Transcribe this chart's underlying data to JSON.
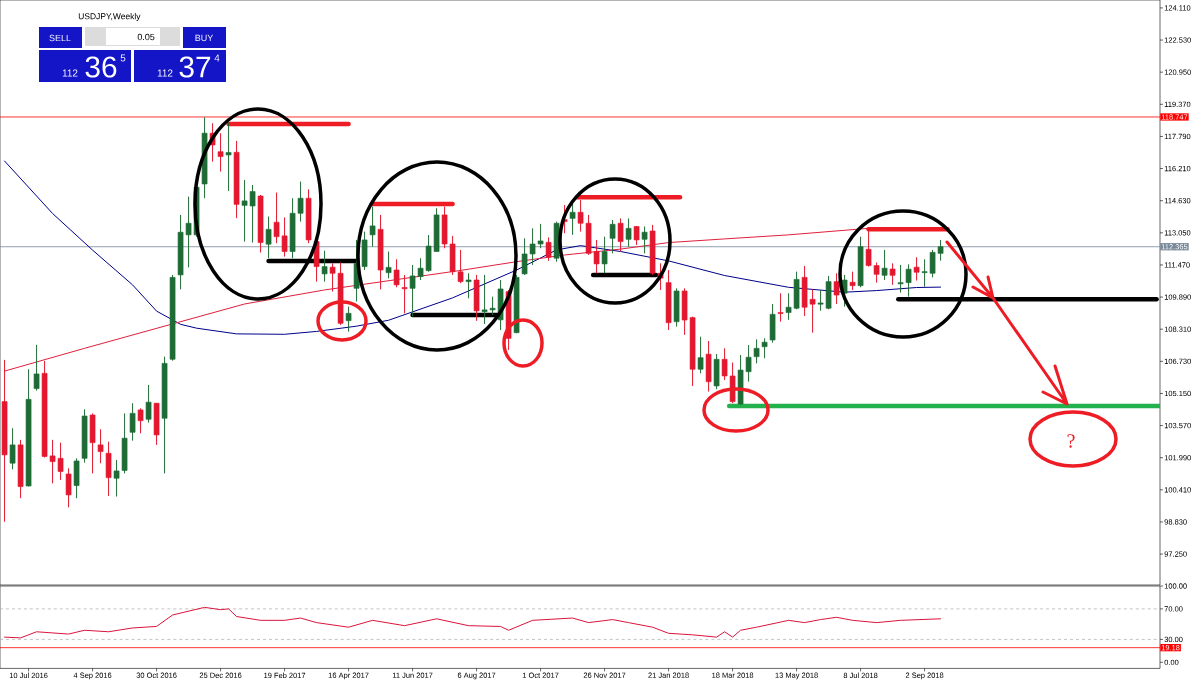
{
  "chart_data": [
    {
      "type": "candlestick",
      "title": "USDJPY,Weekly",
      "x": [
        "2016-06-19",
        "2016-06-26",
        "2016-07-03",
        "2016-07-10",
        "2016-07-17",
        "2016-07-24",
        "2016-07-31",
        "2016-08-07",
        "2016-08-14",
        "2016-08-21",
        "2016-08-28",
        "2016-09-04",
        "2016-09-11",
        "2016-09-18",
        "2016-09-25",
        "2016-10-02",
        "2016-10-09",
        "2016-10-16",
        "2016-10-23",
        "2016-10-30",
        "2016-11-06",
        "2016-11-13",
        "2016-11-20",
        "2016-11-27",
        "2016-12-04",
        "2016-12-11",
        "2016-12-18",
        "2016-12-25",
        "2017-01-01",
        "2017-01-08",
        "2017-01-15",
        "2017-01-22",
        "2017-01-29",
        "2017-02-05",
        "2017-02-12",
        "2017-02-19",
        "2017-02-26",
        "2017-03-05",
        "2017-03-12",
        "2017-03-19",
        "2017-03-26",
        "2017-04-02",
        "2017-04-09",
        "2017-04-16",
        "2017-04-23",
        "2017-04-30",
        "2017-05-07",
        "2017-05-14",
        "2017-05-21",
        "2017-05-28",
        "2017-06-04",
        "2017-06-11",
        "2017-06-18",
        "2017-06-25",
        "2017-07-02",
        "2017-07-09",
        "2017-07-16",
        "2017-07-23",
        "2017-07-30",
        "2017-08-06",
        "2017-08-13",
        "2017-08-20",
        "2017-08-27",
        "2017-09-03",
        "2017-09-10",
        "2017-09-17",
        "2017-09-24",
        "2017-10-01",
        "2017-10-08",
        "2017-10-15",
        "2017-10-22",
        "2017-10-29",
        "2017-11-05",
        "2017-11-12",
        "2017-11-19",
        "2017-11-26",
        "2017-12-03",
        "2017-12-10",
        "2017-12-17",
        "2017-12-24",
        "2017-12-31",
        "2018-01-07",
        "2018-01-14",
        "2018-01-21",
        "2018-01-28",
        "2018-02-04",
        "2018-02-11",
        "2018-02-18",
        "2018-02-25",
        "2018-03-04",
        "2018-03-11",
        "2018-03-18",
        "2018-03-25",
        "2018-04-01",
        "2018-04-08",
        "2018-04-15",
        "2018-04-22",
        "2018-04-29",
        "2018-05-06",
        "2018-05-13",
        "2018-05-20",
        "2018-05-27",
        "2018-06-03",
        "2018-06-10",
        "2018-06-17",
        "2018-06-24",
        "2018-07-01",
        "2018-07-08",
        "2018-07-15",
        "2018-07-22",
        "2018-07-29",
        "2018-08-05",
        "2018-08-12",
        "2018-08-19",
        "2018-08-26",
        "2018-09-02",
        "2018-09-09",
        "2018-09-16"
      ],
      "ohlc": [
        [
          104.75,
          106.8,
          98.84,
          102.13
        ],
        [
          101.72,
          103.44,
          101.42,
          102.62
        ],
        [
          102.62,
          102.87,
          100.0,
          100.57
        ],
        [
          100.6,
          106.34,
          100.57,
          104.86
        ],
        [
          105.39,
          107.54,
          105.29,
          106.11
        ],
        [
          106.14,
          106.75,
          102.0,
          102.05
        ],
        [
          102.08,
          102.87,
          100.73,
          101.8
        ],
        [
          101.96,
          102.73,
          100.9,
          101.31
        ],
        [
          101.19,
          101.47,
          99.55,
          100.16
        ],
        [
          100.62,
          101.96,
          100.0,
          101.83
        ],
        [
          101.96,
          104.37,
          101.75,
          104.04
        ],
        [
          104.09,
          104.17,
          101.22,
          102.73
        ],
        [
          102.62,
          103.39,
          101.72,
          102.29
        ],
        [
          102.21,
          102.78,
          100.11,
          101.01
        ],
        [
          100.98,
          101.88,
          100.08,
          101.34
        ],
        [
          101.36,
          104.17,
          101.22,
          102.95
        ],
        [
          103.24,
          104.67,
          102.83,
          104.17
        ],
        [
          104.34,
          104.42,
          103.19,
          103.81
        ],
        [
          103.88,
          105.57,
          103.72,
          104.72
        ],
        [
          104.67,
          104.67,
          102.62,
          103.11
        ],
        [
          103.93,
          106.96,
          101.22,
          106.63
        ],
        [
          106.83,
          110.98,
          106.76,
          110.86
        ],
        [
          110.98,
          113.93,
          110.27,
          113.08
        ],
        [
          112.95,
          114.83,
          111.35,
          113.52
        ],
        [
          112.95,
          115.36,
          112.86,
          115.29
        ],
        [
          115.45,
          118.73,
          114.75,
          117.95
        ],
        [
          117.95,
          118.44,
          116.55,
          117.37
        ],
        [
          117.04,
          117.95,
          116.06,
          116.8
        ],
        [
          116.88,
          118.47,
          115.11,
          117.0
        ],
        [
          117.01,
          117.57,
          113.77,
          114.45
        ],
        [
          114.4,
          115.65,
          112.62,
          114.62
        ],
        [
          114.37,
          115.4,
          112.57,
          115.08
        ],
        [
          114.86,
          114.91,
          112.08,
          112.57
        ],
        [
          112.49,
          113.85,
          111.8,
          113.22
        ],
        [
          113.57,
          115.03,
          112.54,
          112.86
        ],
        [
          112.9,
          113.81,
          111.88,
          112.13
        ],
        [
          112.13,
          114.75,
          111.8,
          114.01
        ],
        [
          114.01,
          115.57,
          113.6,
          114.75
        ],
        [
          114.75,
          115.19,
          112.54,
          112.7
        ],
        [
          112.62,
          112.7,
          110.65,
          111.39
        ],
        [
          111.03,
          112.17,
          110.65,
          111.39
        ],
        [
          111.36,
          111.55,
          110.16,
          111.06
        ],
        [
          111.06,
          111.59,
          108.52,
          108.6
        ],
        [
          108.73,
          109.42,
          108.19,
          109.09
        ],
        [
          110.32,
          112.7,
          109.67,
          111.55
        ],
        [
          111.39,
          113.11,
          111.22,
          112.7
        ],
        [
          112.95,
          114.34,
          112.37,
          113.39
        ],
        [
          113.22,
          113.93,
          110.27,
          111.22
        ],
        [
          111.09,
          112.13,
          110.81,
          111.35
        ],
        [
          111.22,
          111.75,
          110.37,
          110.49
        ],
        [
          110.36,
          110.98,
          109.09,
          110.3
        ],
        [
          110.32,
          111.47,
          108.93,
          110.93
        ],
        [
          110.9,
          111.8,
          110.73,
          111.31
        ],
        [
          111.19,
          112.94,
          111.14,
          112.4
        ],
        [
          112.13,
          114.26,
          112.13,
          113.93
        ],
        [
          113.93,
          114.34,
          112.29,
          112.5
        ],
        [
          112.5,
          112.9,
          110.98,
          111.14
        ],
        [
          111.13,
          112.21,
          110.57,
          110.65
        ],
        [
          110.65,
          111.06,
          109.83,
          110.73
        ],
        [
          110.73,
          110.98,
          108.72,
          109.21
        ],
        [
          109.17,
          110.98,
          108.57,
          109.26
        ],
        [
          109.26,
          109.91,
          109.01,
          109.34
        ],
        [
          108.77,
          110.73,
          108.27,
          110.29
        ],
        [
          110.16,
          110.24,
          107.29,
          107.86
        ],
        [
          108.14,
          110.98,
          108.11,
          110.86
        ],
        [
          111.03,
          112.78,
          110.98,
          112.01
        ],
        [
          112.01,
          113.27,
          111.47,
          112.5
        ],
        [
          112.5,
          113.49,
          112.29,
          112.65
        ],
        [
          112.58,
          112.83,
          111.67,
          111.85
        ],
        [
          111.8,
          113.6,
          111.63,
          113.52
        ],
        [
          113.7,
          114.42,
          113.03,
          113.6
        ],
        [
          113.76,
          114.5,
          112.95,
          114.06
        ],
        [
          114.06,
          114.67,
          113.11,
          113.52
        ],
        [
          113.52,
          113.93,
          111.96,
          112.04
        ],
        [
          112.13,
          112.7,
          111.06,
          111.52
        ],
        [
          111.52,
          112.86,
          111.06,
          112.13
        ],
        [
          112.78,
          113.68,
          112.04,
          113.47
        ],
        [
          113.52,
          113.76,
          112.13,
          112.62
        ],
        [
          112.73,
          113.76,
          112.37,
          113.27
        ],
        [
          113.36,
          113.39,
          112.45,
          112.7
        ],
        [
          112.73,
          113.36,
          112.04,
          113.08
        ],
        [
          113.14,
          113.44,
          110.98,
          111.06
        ],
        [
          111.06,
          111.55,
          110.24,
          110.82
        ],
        [
          110.6,
          111.22,
          108.27,
          108.63
        ],
        [
          108.68,
          110.32,
          108.44,
          110.19
        ],
        [
          110.19,
          110.32,
          108.03,
          108.76
        ],
        [
          108.88,
          108.93,
          105.52,
          106.34
        ],
        [
          106.34,
          107.94,
          106.14,
          106.91
        ],
        [
          107.08,
          107.73,
          105.24,
          105.73
        ],
        [
          105.52,
          107.09,
          105.36,
          106.83
        ],
        [
          106.83,
          107.37,
          105.81,
          106.01
        ],
        [
          106.01,
          106.67,
          104.67,
          104.75
        ],
        [
          104.63,
          107.04,
          104.58,
          106.3
        ],
        [
          106.22,
          107.53,
          105.73,
          106.93
        ],
        [
          106.96,
          107.81,
          106.63,
          107.37
        ],
        [
          107.45,
          107.86,
          106.88,
          107.67
        ],
        [
          107.78,
          109.55,
          107.65,
          109.04
        ],
        [
          109.13,
          110.08,
          108.68,
          109.08
        ],
        [
          109.13,
          110.08,
          108.77,
          109.39
        ],
        [
          109.34,
          111.14,
          109.29,
          110.76
        ],
        [
          110.86,
          111.42,
          108.96,
          109.39
        ],
        [
          109.78,
          110.27,
          108.14,
          109.54
        ],
        [
          109.54,
          110.24,
          109.22,
          109.6
        ],
        [
          109.34,
          110.93,
          109.29,
          110.65
        ],
        [
          110.65,
          111.06,
          109.55,
          109.99
        ],
        [
          110.08,
          110.98,
          109.42,
          110.73
        ],
        [
          110.62,
          111.14,
          110.24,
          110.45
        ],
        [
          110.45,
          112.86,
          110.37,
          112.37
        ],
        [
          112.24,
          113.27,
          111.39,
          111.44
        ],
        [
          111.44,
          111.59,
          110.6,
          111.01
        ],
        [
          110.96,
          112.21,
          110.73,
          111.31
        ],
        [
          111.27,
          111.55,
          110.49,
          110.96
        ],
        [
          110.54,
          111.47,
          110.11,
          110.6
        ],
        [
          110.6,
          111.5,
          109.91,
          111.26
        ],
        [
          111.36,
          111.85,
          110.7,
          111.11
        ],
        [
          111.09,
          111.75,
          110.4,
          111.14
        ],
        [
          111.06,
          112.21,
          110.86,
          112.09
        ],
        [
          112.04,
          112.7,
          111.68,
          112.37
        ]
      ],
      "colors": [
        "#e3172f",
        "#1e6b35",
        "#e3172f",
        "#1e6b35",
        "#1e6b35",
        "#e3172f",
        "#e3172f",
        "#e3172f",
        "#e3172f",
        "#1e6b35",
        "#1e6b35",
        "#e3172f",
        "#e3172f",
        "#e3172f",
        "#1e6b35",
        "#1e6b35",
        "#1e6b35",
        "#e3172f",
        "#1e6b35",
        "#e3172f",
        "#1e6b35",
        "#1e6b35",
        "#1e6b35",
        "#1e6b35",
        "#1e6b35",
        "#1e6b35",
        "#e3172f",
        "#e3172f",
        "#1e6b35",
        "#e3172f",
        "#1e6b35",
        "#1e6b35",
        "#e3172f",
        "#1e6b35",
        "#e3172f",
        "#e3172f",
        "#1e6b35",
        "#1e6b35",
        "#e3172f",
        "#e3172f",
        "#1e6b35",
        "#e3172f",
        "#e3172f",
        "#1e6b35",
        "#1e6b35",
        "#1e6b35",
        "#1e6b35",
        "#e3172f",
        "#1e6b35",
        "#e3172f",
        "#e3172f",
        "#1e6b35",
        "#1e6b35",
        "#1e6b35",
        "#1e6b35",
        "#e3172f",
        "#e3172f",
        "#e3172f",
        "#1e6b35",
        "#e3172f",
        "#1e6b35",
        "#1e6b35",
        "#1e6b35",
        "#e3172f",
        "#1e6b35",
        "#1e6b35",
        "#1e6b35",
        "#1e6b35",
        "#e3172f",
        "#1e6b35",
        "#e3172f",
        "#1e6b35",
        "#e3172f",
        "#e3172f",
        "#e3172f",
        "#1e6b35",
        "#1e6b35",
        "#e3172f",
        "#1e6b35",
        "#e3172f",
        "#1e6b35",
        "#e3172f",
        "#e3172f",
        "#e3172f",
        "#1e6b35",
        "#e3172f",
        "#e3172f",
        "#1e6b35",
        "#e3172f",
        "#1e6b35",
        "#e3172f",
        "#e3172f",
        "#1e6b35",
        "#1e6b35",
        "#1e6b35",
        "#1e6b35",
        "#1e6b35",
        "#e3172f",
        "#1e6b35",
        "#1e6b35",
        "#e3172f",
        "#e3172f",
        "#1e6b35",
        "#1e6b35",
        "#e3172f",
        "#1e6b35",
        "#e3172f",
        "#1e6b35",
        "#e3172f",
        "#e3172f",
        "#1e6b35",
        "#e3172f",
        "#1e6b35",
        "#1e6b35",
        "#e3172f",
        "#1e6b35",
        "#1e6b35",
        "#1e6b35"
      ],
      "xlim": [
        "2016-06-15",
        "2019-03-27"
      ],
      "ylim": [
        95.73,
        124.5
      ],
      "yticks": [
        {
          "value": 97.25,
          "label": "97.250"
        },
        {
          "value": 98.83,
          "label": "98.830"
        },
        {
          "value": 100.41,
          "label": "100.410"
        },
        {
          "value": 101.99,
          "label": "101.990"
        },
        {
          "value": 103.57,
          "label": "103.570"
        },
        {
          "value": 105.15,
          "label": "105.150"
        },
        {
          "value": 106.73,
          "label": "106.730"
        },
        {
          "value": 108.31,
          "label": "108.310"
        },
        {
          "value": 109.89,
          "label": "109.890"
        },
        {
          "value": 111.47,
          "label": "111.470"
        },
        {
          "value": 113.05,
          "label": "113.050"
        },
        {
          "value": 114.63,
          "label": "114.630"
        },
        {
          "value": 116.21,
          "label": "116.210"
        },
        {
          "value": 117.79,
          "label": "117.790"
        },
        {
          "value": 119.37,
          "label": "119.370"
        },
        {
          "value": 120.95,
          "label": "120.950"
        },
        {
          "value": 122.53,
          "label": "122.530"
        },
        {
          "value": 124.11,
          "label": "124.110"
        }
      ],
      "tick_labels": "y",
      "ref_lines": [
        {
          "axis": "y",
          "value": 118.747,
          "label": "118.747",
          "color": "#ff0000"
        },
        {
          "axis": "y",
          "value": 112.365,
          "label": "112.365",
          "color": "#778899"
        }
      ],
      "series": [
        {
          "type": "line",
          "color": "#00008b",
          "x": [
            "2016-06-19",
            "2016-07-31",
            "2016-09-04",
            "2016-10-09",
            "2016-10-30",
            "2016-11-20",
            "2016-12-04",
            "2017-01-08",
            "2017-02-19",
            "2017-03-19",
            "2017-04-23",
            "2017-05-21",
            "2017-07-16",
            "2017-09-10",
            "2017-10-15",
            "2017-11-05",
            "2017-12-10",
            "2018-01-21",
            "2018-03-11",
            "2018-05-06",
            "2018-06-24",
            "2018-07-22",
            "2018-08-26",
            "2018-09-16"
          ],
          "values": [
            116.58,
            114.0,
            112.2,
            110.49,
            109.2,
            108.55,
            108.36,
            108.08,
            108.06,
            108.2,
            108.46,
            108.75,
            109.85,
            111.22,
            112.21,
            112.42,
            112.13,
            111.67,
            110.95,
            110.37,
            110.13,
            110.21,
            110.36,
            110.38
          ]
        },
        {
          "type": "line",
          "color": "#e0203c",
          "x": [
            "2016-06-19",
            "2016-08-28",
            "2016-11-13",
            "2017-01-15",
            "2017-03-26",
            "2017-05-28",
            "2017-07-23",
            "2017-09-10",
            "2017-10-22",
            "2017-12-10",
            "2018-01-21",
            "2018-03-11",
            "2018-05-06",
            "2018-07-15"
          ],
          "values": [
            106.25,
            107.37,
            108.57,
            109.55,
            110.24,
            110.75,
            111.2,
            111.63,
            111.96,
            112.25,
            112.57,
            112.75,
            112.95,
            113.27
          ]
        },
        {
          "type": "line",
          "color": "#ee1c24",
          "x": [
            "2017-01-01",
            "2017-04-16"
          ],
          "values": [
            118.4,
            118.4
          ]
        },
        {
          "type": "line",
          "color": "#000000",
          "x": [
            "2017-02-05",
            "2017-04-23"
          ],
          "values": [
            111.67,
            111.67
          ]
        },
        {
          "type": "line",
          "color": "#ee1c24",
          "x": [
            "2017-05-07",
            "2017-07-16"
          ],
          "values": [
            114.47,
            114.47
          ]
        },
        {
          "type": "line",
          "color": "#000000",
          "x": [
            "2017-06-11",
            "2017-08-27"
          ],
          "values": [
            109.01,
            109.01
          ]
        },
        {
          "type": "line",
          "color": "#ee1c24",
          "x": [
            "2017-11-02",
            "2018-01-31"
          ],
          "values": [
            114.8,
            114.8
          ]
        },
        {
          "type": "line",
          "color": "#000000",
          "x": [
            "2017-11-16",
            "2018-01-10"
          ],
          "values": [
            110.97,
            110.97
          ]
        },
        {
          "type": "line",
          "color": "#22b14c",
          "x": [
            "2018-03-15",
            "2019-03-27"
          ],
          "values": [
            104.53,
            104.53
          ]
        },
        {
          "type": "line",
          "color": "#ee1c24",
          "x": [
            "2018-07-15",
            "2018-09-22"
          ],
          "values": [
            113.23,
            113.23
          ]
        },
        {
          "type": "line",
          "color": "#000000",
          "x": [
            "2018-08-10",
            "2019-03-24"
          ],
          "values": [
            109.78,
            109.78
          ]
        }
      ],
      "annotations": [
        "?",
        "SELL",
        "0.05",
        "BUY",
        "112",
        "36",
        "5",
        "112",
        "37",
        "4"
      ]
    },
    {
      "type": "line",
      "x": [
        "2016-06-19",
        "2016-07-03",
        "2016-07-17",
        "2016-08-14",
        "2016-08-28",
        "2016-09-18",
        "2016-10-09",
        "2016-10-30",
        "2016-11-13",
        "2016-12-11",
        "2016-12-25",
        "2017-01-01",
        "2017-01-08",
        "2017-01-29",
        "2017-02-19",
        "2017-03-05",
        "2017-03-19",
        "2017-04-16",
        "2017-05-07",
        "2017-06-04",
        "2017-07-02",
        "2017-07-30",
        "2017-08-27",
        "2017-09-03",
        "2017-09-24",
        "2017-10-29",
        "2017-11-12",
        "2017-12-03",
        "2017-12-17",
        "2018-01-07",
        "2018-01-21",
        "2018-02-11",
        "2018-03-04",
        "2018-03-11",
        "2018-03-18",
        "2018-03-25",
        "2018-04-08",
        "2018-05-06",
        "2018-05-20",
        "2018-06-03",
        "2018-06-17",
        "2018-07-01",
        "2018-07-22",
        "2018-08-12",
        "2018-09-16"
      ],
      "series": [
        {
          "color": "#dc143c",
          "values": [
            33,
            32,
            40,
            37,
            42,
            40,
            45,
            47,
            62,
            72,
            69,
            70,
            60,
            55,
            55,
            58,
            52,
            46,
            55,
            48,
            57,
            48,
            47,
            42,
            55,
            58,
            52,
            56,
            52,
            46,
            38,
            36,
            33,
            40,
            33,
            42,
            46,
            55,
            52,
            56,
            59,
            55,
            52,
            55,
            57
          ]
        }
      ],
      "xlim": [
        "2016-06-15",
        "2019-03-27"
      ],
      "ylim": [
        -8,
        100
      ],
      "xticks": [
        {
          "value": "2016-07-10",
          "label": "10 Jul 2016"
        },
        {
          "value": "2016-09-04",
          "label": "4 Sep 2016"
        },
        {
          "value": "2016-10-30",
          "label": "30 Oct 2016"
        },
        {
          "value": "2016-12-25",
          "label": "25 Dec 2016"
        },
        {
          "value": "2017-02-19",
          "label": "19 Feb 2017"
        },
        {
          "value": "2017-04-16",
          "label": "16 Apr 2017"
        },
        {
          "value": "2017-06-11",
          "label": "11 Jun 2017"
        },
        {
          "value": "2017-08-06",
          "label": "6 Aug 2017"
        },
        {
          "value": "2017-10-01",
          "label": "1 Oct 2017"
        },
        {
          "value": "2017-11-26",
          "label": "26 Nov 2017"
        },
        {
          "value": "2018-01-21",
          "label": "21 Jan 2018"
        },
        {
          "value": "2018-03-18",
          "label": "18 Mar 2018"
        },
        {
          "value": "2018-05-13",
          "label": "13 May 2018"
        },
        {
          "value": "2018-07-08",
          "label": "8 Jul 2018"
        },
        {
          "value": "2018-09-02",
          "label": "2 Sep 2018"
        }
      ],
      "yticks": [
        {
          "value": 0,
          "label": "0.00"
        },
        {
          "value": 30,
          "label": "30.00"
        },
        {
          "value": 70,
          "label": "70.00"
        },
        {
          "value": 100,
          "label": "100.00"
        }
      ],
      "ref_lines": [
        {
          "axis": "y",
          "value": 70,
          "color": "#b4b4b4",
          "line_style": "dashed"
        },
        {
          "axis": "y",
          "value": 30,
          "color": "#b4b4b4",
          "line_style": "dashed"
        },
        {
          "axis": "y",
          "value": 19.18,
          "label": "19.18",
          "color": "#ff0000"
        }
      ]
    }
  ]
}
